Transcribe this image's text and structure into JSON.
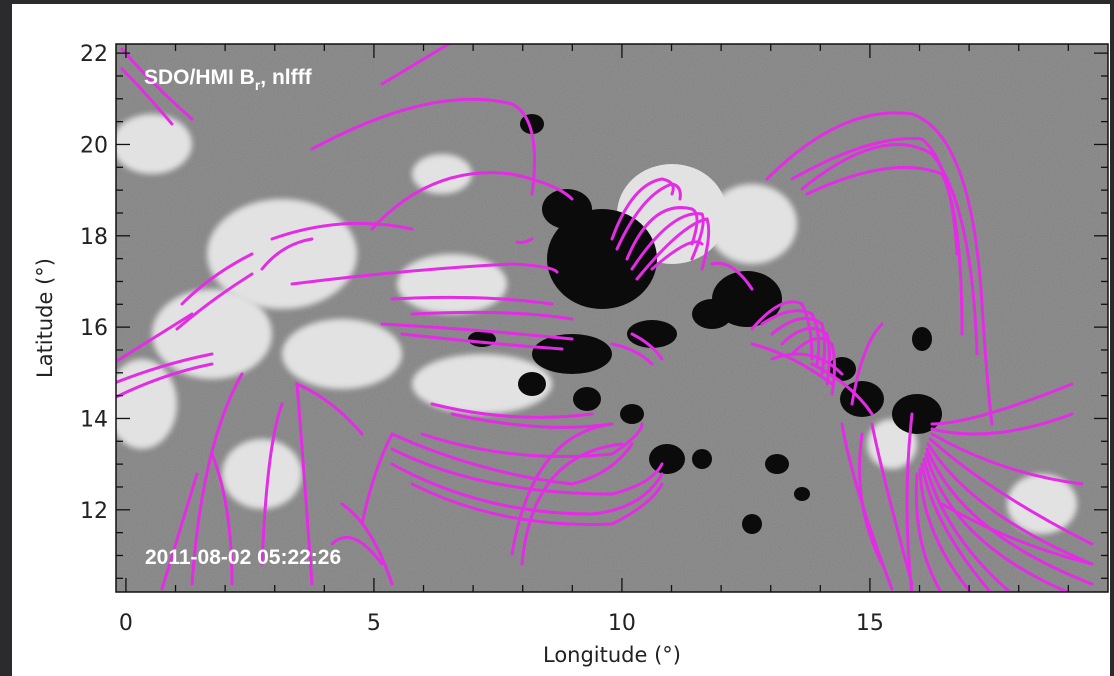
{
  "figure": {
    "instrument_label": "SDO/HMI B",
    "instrument_label_sub": "r",
    "instrument_label_suffix": ", nlfff",
    "timestamp": "2011-08-02 05:22:26",
    "x_axis_title": "Longitude (°)",
    "y_axis_title": "Latitude (°)",
    "x_ticks": [
      {
        "value": 0,
        "label": "0"
      },
      {
        "value": 5,
        "label": "5"
      },
      {
        "value": 10,
        "label": "10"
      },
      {
        "value": 15,
        "label": "15"
      }
    ],
    "y_ticks": [
      {
        "value": 12,
        "label": "12"
      },
      {
        "value": 14,
        "label": "14"
      },
      {
        "value": 16,
        "label": "16"
      },
      {
        "value": 18,
        "label": "18"
      },
      {
        "value": 20,
        "label": "20"
      },
      {
        "value": 22,
        "label": "22"
      }
    ],
    "x_range": [
      -0.2,
      19.8
    ],
    "y_range": [
      10.2,
      22.2
    ],
    "colors": {
      "field_lines": "#e42ce6",
      "overlay_text": "#ffffff",
      "background_gray": "#7f7f7f"
    }
  }
}
